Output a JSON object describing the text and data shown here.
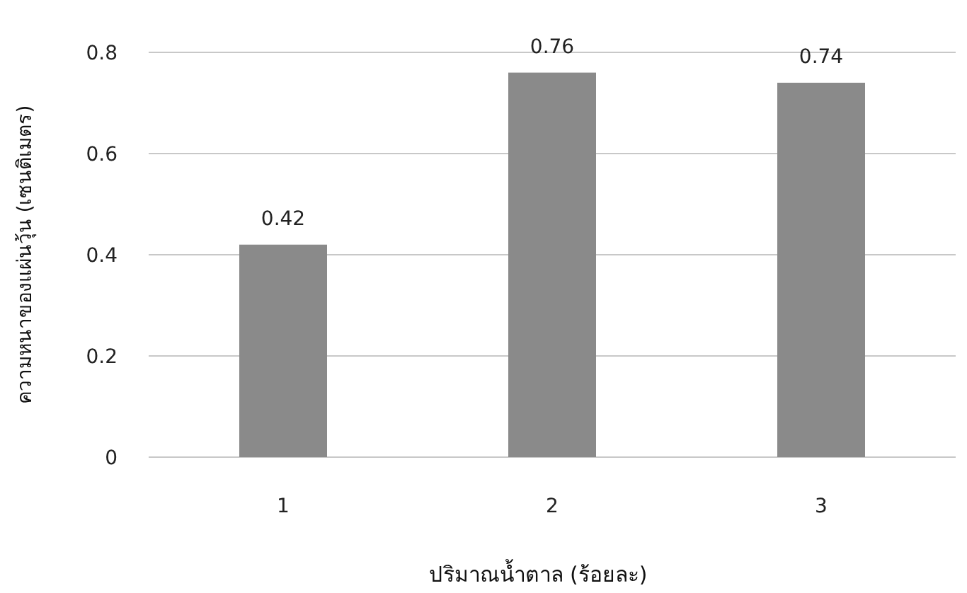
{
  "chart_data": {
    "type": "bar",
    "xlabel": "ปริมาณน้ำตาล (ร้อยละ)",
    "ylabel": "ความหนาของแผ่นวุ้น (เซนติเมตร)",
    "categories": [
      "1",
      "2",
      "3"
    ],
    "values": [
      0.42,
      0.76,
      0.74
    ],
    "color": "#8a8a8a",
    "ylim": [
      0,
      0.8
    ],
    "yticks": [
      0,
      0.2,
      0.4,
      0.6,
      0.8
    ],
    "grid": "y",
    "data_labels": true
  }
}
